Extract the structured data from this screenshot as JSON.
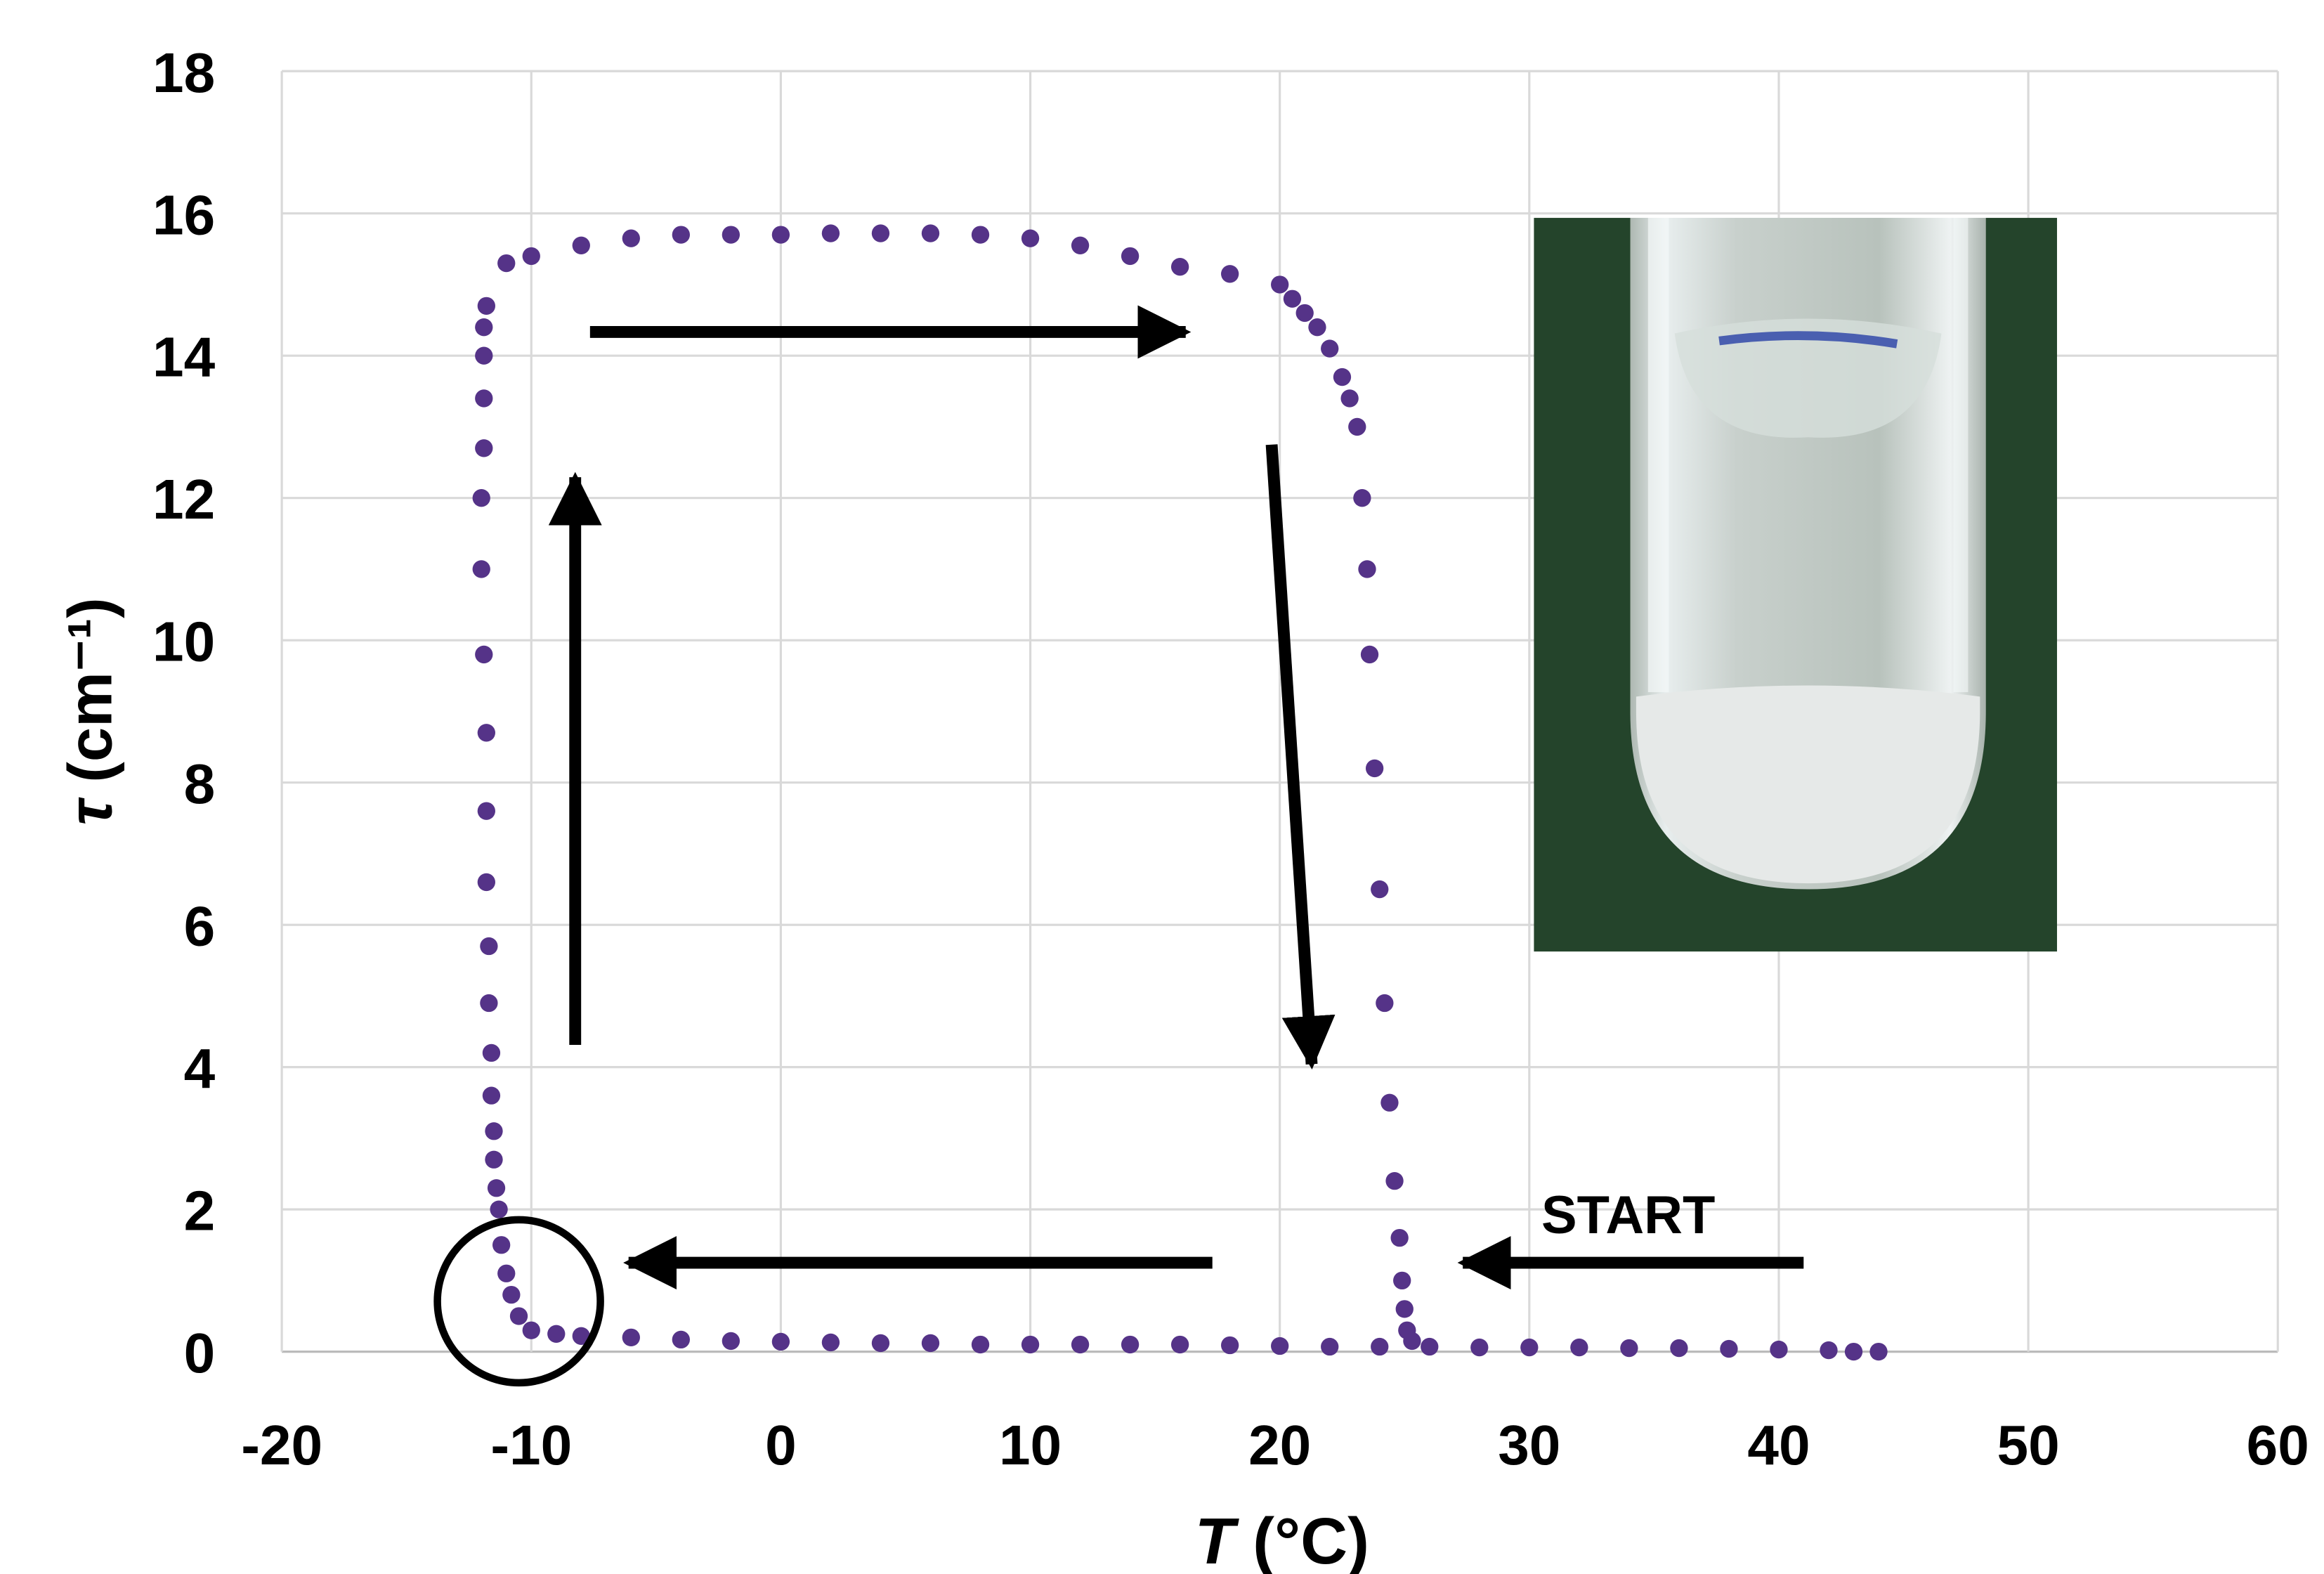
{
  "chart_data": {
    "type": "scatter",
    "xlabel": {
      "symbol": "T",
      "unit": "(°C)"
    },
    "ylabel": {
      "symbol": "τ",
      "unit": "(cm⁻¹)"
    },
    "annotation": "START",
    "xlim": [
      -20,
      60
    ],
    "xticks": [
      -20,
      -10,
      0,
      10,
      20,
      30,
      40,
      50,
      60
    ],
    "ylim": [
      0,
      18
    ],
    "yticks": [
      0,
      2,
      4,
      6,
      8,
      10,
      12,
      14,
      16,
      18
    ],
    "grid": true,
    "color": "#553388",
    "x": [
      44,
      43,
      42,
      40,
      38,
      36,
      34,
      32,
      30,
      28,
      26,
      24,
      22,
      20,
      18,
      16,
      14,
      12,
      10,
      8,
      6,
      4,
      2,
      0,
      -2,
      -4,
      -6,
      -8,
      -9,
      -10,
      -10.5,
      -10.8,
      -11,
      -11.2,
      -11.3,
      -11.4,
      -11.5,
      -11.5,
      -11.6,
      -11.6,
      -11.7,
      -11.7,
      -11.8,
      -11.8,
      -11.8,
      -11.9,
      -12,
      -12,
      -11.9,
      -11.9,
      -11.9,
      -11.9,
      -11.8,
      -11,
      -10,
      -8,
      -6,
      -4,
      -2,
      0,
      2,
      4,
      6,
      8,
      10,
      12,
      14,
      16,
      18,
      20,
      20.5,
      21,
      21.5,
      22,
      22.5,
      22.8,
      23.1,
      23.3,
      23.5,
      23.6,
      23.8,
      24,
      24.2,
      24.4,
      24.6,
      24.8,
      24.9,
      25,
      25.1,
      25.3
    ],
    "y": [
      0,
      0,
      0.02,
      0.03,
      0.04,
      0.05,
      0.05,
      0.06,
      0.06,
      0.06,
      0.07,
      0.07,
      0.07,
      0.08,
      0.09,
      0.1,
      0.1,
      0.1,
      0.1,
      0.1,
      0.12,
      0.12,
      0.13,
      0.14,
      0.15,
      0.17,
      0.2,
      0.22,
      0.25,
      0.3,
      0.5,
      0.8,
      1.1,
      1.5,
      2.0,
      2.3,
      2.7,
      3.1,
      3.6,
      4.2,
      4.9,
      5.7,
      6.6,
      7.6,
      8.7,
      9.8,
      11,
      12,
      12.7,
      13.4,
      14,
      14.4,
      14.7,
      15.3,
      15.4,
      15.55,
      15.65,
      15.7,
      15.7,
      15.7,
      15.72,
      15.72,
      15.72,
      15.7,
      15.65,
      15.55,
      15.4,
      15.25,
      15.15,
      15,
      14.8,
      14.6,
      14.4,
      14.1,
      13.7,
      13.4,
      13.0,
      12.0,
      11.0,
      9.8,
      8.2,
      6.5,
      4.9,
      3.5,
      2.4,
      1.6,
      1.0,
      0.6,
      0.3,
      0.15
    ]
  }
}
